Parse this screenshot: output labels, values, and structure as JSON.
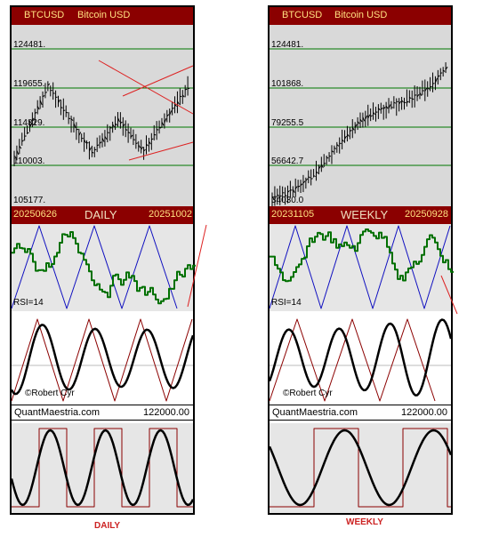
{
  "chart_data": [
    {
      "type": "line",
      "title": "BTCUSD Bitcoin USD",
      "symbol": "BTCUSD",
      "name": "Bitcoin USD",
      "timeframe": "DAILY",
      "date_start": "20250626",
      "date_end": "20251002",
      "price_levels": [
        "124481.",
        "119655.",
        "114829.",
        "110003.",
        "105177."
      ],
      "price_range": [
        105177,
        124481
      ],
      "rsi_label": "RSI=14",
      "copyright": "©Robert Cyr",
      "footer_site": "QuantMaestria.com",
      "footer_value": "122000.00",
      "caption": "DAILY",
      "colors": {
        "header": "#8b0000",
        "price_series": "#000000",
        "rsi": "#007000",
        "cycle": "#1010c0",
        "trend": "#dd2222",
        "gridline": "#007700"
      }
    },
    {
      "type": "line",
      "title": "BTCUSD Bitcoin USD",
      "symbol": "BTCUSD",
      "name": "Bitcoin USD",
      "timeframe": "WEEKLY",
      "date_start": "20231105",
      "date_end": "20250928",
      "price_levels": [
        "124481.",
        "101868.",
        "79255.5",
        "56642.7",
        "34030.0"
      ],
      "price_range": [
        34030.0,
        124481
      ],
      "rsi_label": "RSI=14",
      "copyright": "©Robert Cyr",
      "footer_site": "QuantMaestria.com",
      "footer_value": "122000.00",
      "caption": "WEEKLY",
      "colors": {
        "header": "#8b0000",
        "price_series": "#000000",
        "rsi": "#007000",
        "cycle": "#1010c0",
        "trend": "#dd2222",
        "gridline": "#007700"
      }
    }
  ]
}
